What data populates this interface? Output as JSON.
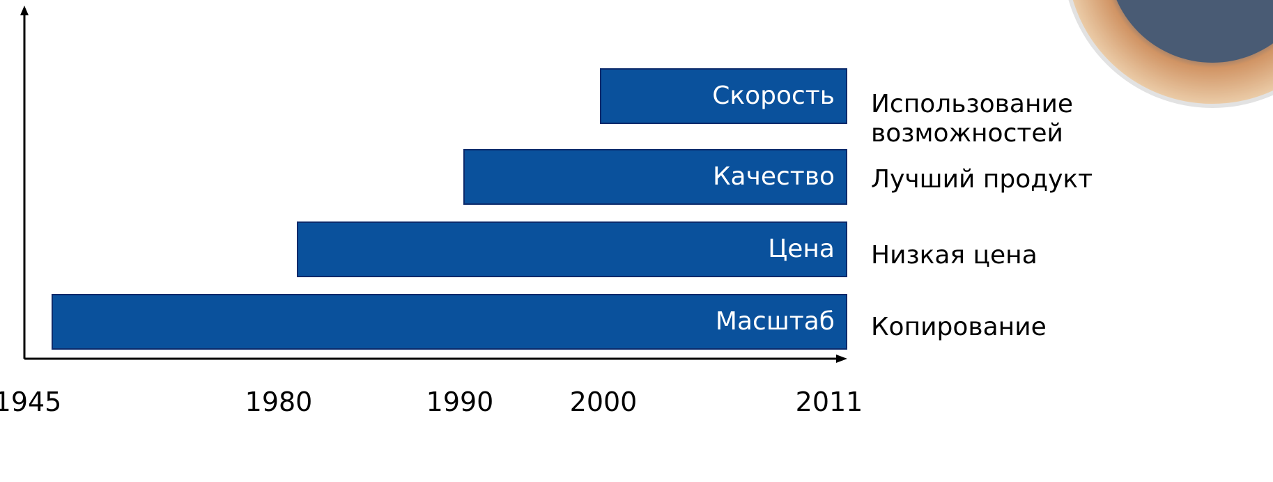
{
  "axis": {
    "labels": [
      "1945",
      "1980",
      "1990",
      "2000",
      "2011"
    ]
  },
  "rows": [
    {
      "bar": "Скорость",
      "result": "Использование возможностей"
    },
    {
      "bar": "Качество",
      "result": "Лучший продукт"
    },
    {
      "bar": "Цена",
      "result": "Низкая цена"
    },
    {
      "bar": "Масштаб",
      "result": "Копирование"
    }
  ]
}
